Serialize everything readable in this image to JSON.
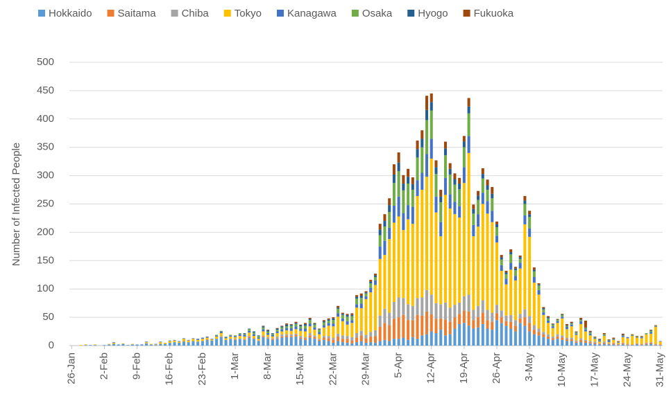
{
  "chart_data": {
    "type": "stacked_bar",
    "ylabel": "Number of Infected People",
    "legend_position": "top",
    "grid": true,
    "ylim": [
      0,
      500
    ],
    "yticks": [
      0,
      50,
      100,
      150,
      200,
      250,
      300,
      350,
      400,
      450,
      500
    ],
    "categories": [
      "26-Jan",
      null,
      null,
      null,
      null,
      null,
      null,
      "2-Feb",
      null,
      null,
      null,
      null,
      null,
      null,
      "9-Feb",
      null,
      null,
      null,
      null,
      null,
      null,
      "16-Feb",
      null,
      null,
      null,
      null,
      null,
      null,
      "23-Feb",
      null,
      null,
      null,
      null,
      null,
      null,
      "1-Mar",
      null,
      null,
      null,
      null,
      null,
      null,
      "8-Mar",
      null,
      null,
      null,
      null,
      null,
      null,
      "15-Mar",
      null,
      null,
      null,
      null,
      null,
      null,
      "22-Mar",
      null,
      null,
      null,
      null,
      null,
      null,
      "29-Mar",
      null,
      null,
      null,
      null,
      null,
      null,
      "5-Apr",
      null,
      null,
      null,
      null,
      null,
      null,
      "12-Apr",
      null,
      null,
      null,
      null,
      null,
      null,
      "19-Apr",
      null,
      null,
      null,
      null,
      null,
      null,
      "26-Apr",
      null,
      null,
      null,
      null,
      null,
      null,
      "3-May",
      null,
      null,
      null,
      null,
      null,
      null,
      "10-May",
      null,
      null,
      null,
      null,
      null,
      null,
      "17-May",
      null,
      null,
      null,
      null,
      null,
      null,
      "24-May",
      null,
      null,
      null,
      null,
      null,
      null,
      "31-May"
    ],
    "series": [
      {
        "name": "Hokkaido",
        "color": "#5b9bd5",
        "values": [
          0,
          0,
          0,
          1,
          1,
          1,
          0,
          1,
          2,
          3,
          2,
          3,
          1,
          2,
          2,
          1,
          4,
          2,
          1,
          3,
          3,
          5,
          6,
          5,
          7,
          6,
          8,
          7,
          8,
          10,
          9,
          12,
          15,
          10,
          12,
          10,
          12,
          10,
          14,
          12,
          8,
          15,
          12,
          10,
          12,
          14,
          15,
          15,
          16,
          12,
          10,
          14,
          12,
          8,
          10,
          8,
          5,
          8,
          6,
          5,
          4,
          6,
          8,
          5,
          6,
          5,
          8,
          10,
          8,
          12,
          12,
          14,
          10,
          15,
          12,
          18,
          20,
          25,
          22,
          28,
          18,
          20,
          30,
          38,
          40,
          35,
          30,
          32,
          38,
          30,
          28,
          45,
          40,
          35,
          30,
          25,
          40,
          35,
          25,
          20,
          18,
          15,
          12,
          10,
          12,
          10,
          8,
          8,
          5,
          6,
          5,
          4,
          3,
          2,
          3,
          2,
          2,
          1,
          2,
          1,
          1,
          2,
          1,
          2,
          3,
          1,
          1
        ]
      },
      {
        "name": "Saitama",
        "color": "#ed7d31",
        "values": [
          0,
          0,
          0,
          0,
          0,
          0,
          0,
          0,
          0,
          0,
          0,
          0,
          0,
          0,
          0,
          0,
          0,
          0,
          0,
          0,
          0,
          0,
          0,
          0,
          1,
          0,
          0,
          0,
          0,
          1,
          0,
          0,
          1,
          0,
          0,
          1,
          0,
          1,
          2,
          1,
          0,
          2,
          1,
          2,
          1,
          2,
          3,
          2,
          3,
          2,
          3,
          4,
          3,
          2,
          4,
          5,
          5,
          8,
          6,
          7,
          5,
          8,
          10,
          8,
          10,
          12,
          25,
          30,
          28,
          35,
          38,
          40,
          35,
          30,
          42,
          35,
          40,
          30,
          25,
          20,
          28,
          22,
          20,
          18,
          22,
          25,
          15,
          18,
          20,
          15,
          14,
          12,
          10,
          8,
          12,
          10,
          8,
          15,
          15,
          8,
          6,
          5,
          4,
          3,
          4,
          4,
          3,
          3,
          2,
          4,
          3,
          2,
          2,
          1,
          2,
          1,
          2,
          1,
          2,
          1,
          1,
          1,
          1,
          2,
          2,
          1,
          1
        ]
      },
      {
        "name": "Chiba",
        "color": "#a5a5a5",
        "values": [
          0,
          0,
          0,
          0,
          0,
          0,
          0,
          0,
          0,
          0,
          0,
          0,
          0,
          0,
          0,
          0,
          0,
          0,
          0,
          0,
          0,
          0,
          0,
          0,
          0,
          0,
          0,
          0,
          0,
          0,
          0,
          0,
          1,
          0,
          0,
          1,
          0,
          1,
          1,
          0,
          1,
          1,
          2,
          1,
          3,
          4,
          2,
          3,
          2,
          3,
          2,
          4,
          3,
          2,
          3,
          4,
          4,
          5,
          6,
          5,
          6,
          8,
          8,
          6,
          8,
          10,
          20,
          25,
          22,
          30,
          35,
          30,
          28,
          25,
          30,
          32,
          38,
          35,
          28,
          25,
          30,
          25,
          22,
          20,
          25,
          30,
          18,
          20,
          22,
          18,
          16,
          15,
          12,
          10,
          12,
          10,
          8,
          14,
          12,
          8,
          6,
          4,
          4,
          3,
          4,
          4,
          3,
          3,
          2,
          3,
          2,
          2,
          2,
          1,
          2,
          1,
          1,
          1,
          1,
          1,
          0,
          1,
          1,
          1,
          1,
          1,
          0
        ]
      },
      {
        "name": "Tokyo",
        "color": "#ffc000",
        "values": [
          0,
          0,
          1,
          1,
          0,
          1,
          0,
          0,
          1,
          2,
          0,
          1,
          0,
          1,
          0,
          0,
          2,
          1,
          1,
          3,
          2,
          3,
          3,
          2,
          4,
          3,
          4,
          3,
          4,
          3,
          2,
          4,
          5,
          3,
          4,
          3,
          5,
          4,
          6,
          4,
          3,
          7,
          4,
          3,
          6,
          5,
          7,
          6,
          8,
          9,
          10,
          12,
          10,
          8,
          15,
          18,
          20,
          30,
          25,
          20,
          25,
          45,
          40,
          63,
          70,
          80,
          100,
          95,
          130,
          140,
          143,
          120,
          150,
          145,
          180,
          190,
          200,
          240,
          160,
          120,
          190,
          175,
          160,
          150,
          200,
          250,
          130,
          140,
          170,
          170,
          160,
          110,
          70,
          55,
          80,
          70,
          80,
          150,
          140,
          75,
          60,
          30,
          20,
          15,
          20,
          30,
          15,
          20,
          10,
          25,
          15,
          10,
          5,
          3,
          10,
          2,
          5,
          2,
          10,
          10,
          15,
          10,
          10,
          15,
          15,
          30,
          5
        ]
      },
      {
        "name": "Kanagawa",
        "color": "#4472c4",
        "values": [
          0,
          0,
          0,
          0,
          0,
          0,
          0,
          0,
          0,
          1,
          0,
          0,
          0,
          0,
          0,
          1,
          1,
          0,
          1,
          1,
          0,
          1,
          1,
          1,
          1,
          1,
          1,
          2,
          2,
          2,
          1,
          2,
          3,
          2,
          2,
          2,
          3,
          3,
          3,
          3,
          2,
          4,
          3,
          3,
          3,
          4,
          4,
          5,
          5,
          4,
          5,
          5,
          4,
          4,
          4,
          5,
          5,
          6,
          5,
          6,
          5,
          6,
          8,
          5,
          8,
          8,
          22,
          25,
          20,
          30,
          35,
          30,
          25,
          30,
          28,
          30,
          40,
          35,
          28,
          25,
          30,
          25,
          22,
          20,
          28,
          30,
          20,
          22,
          20,
          22,
          20,
          12,
          10,
          10,
          12,
          8,
          10,
          16,
          15,
          10,
          8,
          5,
          4,
          3,
          3,
          3,
          4,
          3,
          2,
          5,
          4,
          3,
          2,
          2,
          1,
          2,
          1,
          1,
          2,
          2,
          1,
          1,
          2,
          1,
          3,
          1,
          1
        ]
      },
      {
        "name": "Osaka",
        "color": "#70ad47",
        "values": [
          0,
          0,
          0,
          0,
          0,
          0,
          0,
          0,
          0,
          0,
          0,
          0,
          0,
          0,
          0,
          0,
          0,
          0,
          0,
          0,
          0,
          0,
          0,
          0,
          0,
          0,
          0,
          0,
          0,
          0,
          0,
          1,
          1,
          1,
          1,
          1,
          2,
          2,
          3,
          3,
          3,
          3,
          3,
          2,
          3,
          3,
          3,
          4,
          4,
          4,
          5,
          6,
          5,
          4,
          5,
          4,
          6,
          8,
          6,
          8,
          7,
          10,
          10,
          5,
          8,
          6,
          20,
          25,
          28,
          40,
          45,
          40,
          38,
          30,
          40,
          45,
          60,
          50,
          40,
          35,
          40,
          35,
          30,
          30,
          35,
          40,
          20,
          25,
          25,
          20,
          22,
          15,
          10,
          8,
          15,
          10,
          7,
          20,
          20,
          10,
          8,
          5,
          4,
          3,
          2,
          3,
          2,
          2,
          2,
          2,
          2,
          2,
          1,
          1,
          2,
          1,
          1,
          1,
          1,
          0,
          1,
          1,
          1,
          1,
          2,
          1,
          0
        ]
      },
      {
        "name": "Hyogo",
        "color": "#255e91",
        "values": [
          0,
          0,
          0,
          0,
          0,
          0,
          0,
          0,
          0,
          0,
          0,
          0,
          0,
          0,
          0,
          0,
          0,
          0,
          0,
          0,
          0,
          0,
          0,
          0,
          0,
          0,
          0,
          0,
          0,
          0,
          0,
          0,
          0,
          0,
          0,
          0,
          0,
          1,
          1,
          2,
          1,
          2,
          2,
          1,
          2,
          2,
          3,
          2,
          2,
          2,
          3,
          2,
          2,
          1,
          2,
          2,
          3,
          2,
          2,
          3,
          2,
          3,
          4,
          2,
          3,
          3,
          10,
          10,
          12,
          15,
          15,
          12,
          12,
          10,
          15,
          15,
          18,
          15,
          12,
          10,
          12,
          10,
          10,
          10,
          10,
          12,
          8,
          8,
          8,
          8,
          8,
          5,
          4,
          3,
          4,
          3,
          3,
          6,
          5,
          3,
          2,
          2,
          2,
          1,
          1,
          1,
          1,
          1,
          1,
          1,
          1,
          1,
          0,
          1,
          0,
          1,
          0,
          0,
          1,
          0,
          0,
          0,
          0,
          0,
          1,
          0,
          0
        ]
      },
      {
        "name": "Fukuoka",
        "color": "#9e480e",
        "values": [
          0,
          0,
          0,
          0,
          0,
          0,
          0,
          0,
          0,
          0,
          0,
          0,
          0,
          0,
          0,
          0,
          0,
          0,
          0,
          0,
          0,
          0,
          0,
          0,
          0,
          0,
          0,
          0,
          0,
          0,
          0,
          0,
          0,
          0,
          0,
          0,
          0,
          0,
          0,
          0,
          0,
          1,
          1,
          0,
          1,
          1,
          2,
          1,
          2,
          1,
          2,
          2,
          1,
          1,
          2,
          2,
          2,
          3,
          2,
          2,
          3,
          3,
          4,
          2,
          3,
          3,
          10,
          12,
          12,
          18,
          18,
          15,
          14,
          12,
          15,
          15,
          25,
          15,
          12,
          12,
          12,
          10,
          10,
          10,
          10,
          15,
          8,
          8,
          10,
          10,
          12,
          5,
          4,
          3,
          5,
          3,
          3,
          8,
          6,
          4,
          2,
          2,
          2,
          1,
          1,
          1,
          2,
          2,
          1,
          3,
          12,
          2,
          1,
          1,
          2,
          1,
          2,
          1,
          2,
          0,
          1,
          1,
          1,
          0,
          1,
          1,
          0
        ]
      }
    ]
  }
}
